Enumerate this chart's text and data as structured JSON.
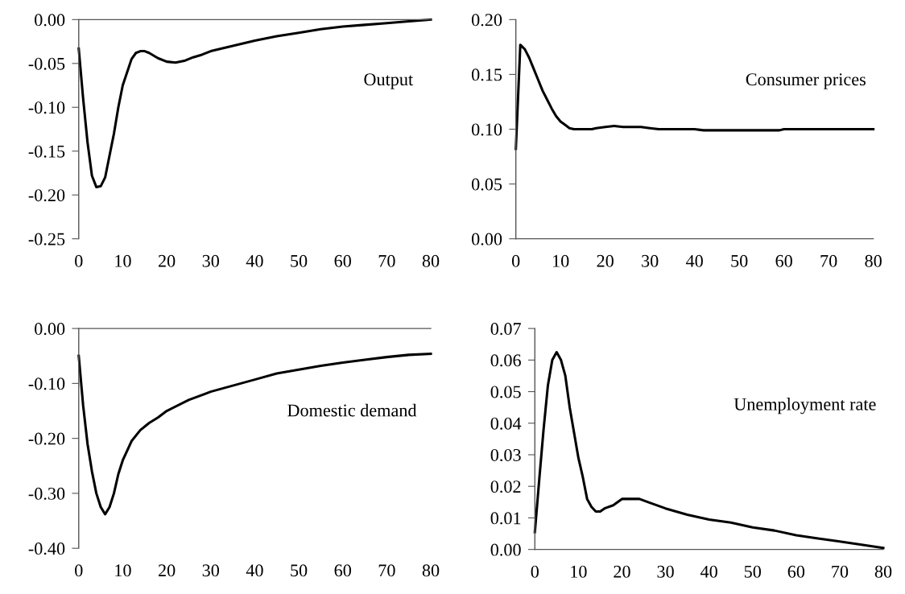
{
  "chart_data": [
    {
      "type": "line",
      "x": [
        0,
        1,
        2,
        3,
        4,
        5,
        6,
        7,
        8,
        9,
        10,
        12,
        13,
        14,
        15,
        16,
        18,
        20,
        22,
        24,
        26,
        28,
        30,
        35,
        40,
        45,
        50,
        55,
        60,
        65,
        70,
        75,
        80
      ],
      "series": [
        {
          "color": "#000000",
          "values": [
            -0.033,
            -0.09,
            -0.14,
            -0.178,
            -0.191,
            -0.19,
            -0.18,
            -0.155,
            -0.13,
            -0.1,
            -0.075,
            -0.045,
            -0.038,
            -0.036,
            -0.036,
            -0.038,
            -0.044,
            -0.048,
            -0.049,
            -0.047,
            -0.043,
            -0.04,
            -0.036,
            -0.03,
            -0.024,
            -0.019,
            -0.015,
            -0.011,
            -0.008,
            -0.006,
            -0.004,
            -0.002,
            0
          ]
        }
      ],
      "xlim": [
        0,
        80
      ],
      "xticks": [
        0,
        10,
        20,
        30,
        40,
        50,
        60,
        70,
        80
      ],
      "ylim": [
        -0.25,
        0
      ],
      "yticks": [
        {
          "value": -0.25,
          "label": "-0.25"
        },
        {
          "value": -0.2,
          "label": "-0.20"
        },
        {
          "value": -0.15,
          "label": "-0.15"
        },
        {
          "value": -0.1,
          "label": "-0.10"
        },
        {
          "value": -0.05,
          "label": "-0.05"
        },
        {
          "value": 0,
          "label": "0.00"
        }
      ],
      "annotations": [
        "Output"
      ]
    },
    {
      "type": "line",
      "x": [
        0,
        1,
        2,
        3,
        4,
        5,
        6,
        7,
        8,
        9,
        10,
        11,
        12,
        13,
        15,
        17,
        18,
        20,
        22,
        24,
        28,
        30,
        32,
        40,
        42,
        59,
        60,
        80
      ],
      "series": [
        {
          "color": "#000000",
          "values": [
            0.082,
            0.177,
            0.173,
            0.165,
            0.155,
            0.145,
            0.135,
            0.127,
            0.119,
            0.112,
            0.107,
            0.104,
            0.101,
            0.1,
            0.1,
            0.1,
            0.101,
            0.102,
            0.103,
            0.102,
            0.102,
            0.101,
            0.1,
            0.1,
            0.099,
            0.099,
            0.1,
            0.1
          ]
        }
      ],
      "xlim": [
        0,
        80
      ],
      "xticks": [
        0,
        10,
        20,
        30,
        40,
        50,
        60,
        70,
        80
      ],
      "ylim": [
        0,
        0.2
      ],
      "yticks": [
        {
          "value": 0,
          "label": "0.00"
        },
        {
          "value": 0.05,
          "label": "0.05"
        },
        {
          "value": 0.1,
          "label": "0.10"
        },
        {
          "value": 0.15,
          "label": "0.15"
        },
        {
          "value": 0.2,
          "label": "0.20"
        }
      ],
      "annotations": [
        "Consumer prices"
      ]
    },
    {
      "type": "line",
      "x": [
        0,
        1,
        2,
        3,
        4,
        5,
        6,
        7,
        8,
        9,
        10,
        12,
        14,
        16,
        18,
        20,
        25,
        30,
        35,
        40,
        45,
        50,
        55,
        60,
        65,
        70,
        75,
        80
      ],
      "series": [
        {
          "color": "#000000",
          "values": [
            -0.05,
            -0.14,
            -0.21,
            -0.26,
            -0.3,
            -0.325,
            -0.338,
            -0.325,
            -0.3,
            -0.265,
            -0.24,
            -0.205,
            -0.185,
            -0.172,
            -0.162,
            -0.15,
            -0.13,
            -0.115,
            -0.104,
            -0.093,
            -0.082,
            -0.075,
            -0.068,
            -0.062,
            -0.057,
            -0.052,
            -0.048,
            -0.046
          ]
        }
      ],
      "xlim": [
        0,
        80
      ],
      "xticks": [
        0,
        10,
        20,
        30,
        40,
        50,
        60,
        70,
        80
      ],
      "ylim": [
        -0.4,
        0
      ],
      "yticks": [
        {
          "value": -0.4,
          "label": "-0.40"
        },
        {
          "value": -0.3,
          "label": "-0.30"
        },
        {
          "value": -0.2,
          "label": "-0.20"
        },
        {
          "value": -0.1,
          "label": "-0.10"
        },
        {
          "value": 0,
          "label": "0.00"
        }
      ],
      "annotations": [
        "Domestic demand"
      ]
    },
    {
      "type": "line",
      "x": [
        0,
        1,
        2,
        3,
        4,
        5,
        6,
        7,
        8,
        9,
        10,
        11,
        12,
        13,
        14,
        15,
        16,
        18,
        20,
        24,
        26,
        30,
        35,
        40,
        45,
        50,
        55,
        60,
        65,
        70,
        75,
        80
      ],
      "series": [
        {
          "color": "#000000",
          "values": [
            0.0055,
            0.022,
            0.038,
            0.052,
            0.06,
            0.0625,
            0.06,
            0.055,
            0.045,
            0.037,
            0.029,
            0.023,
            0.016,
            0.0135,
            0.012,
            0.012,
            0.013,
            0.014,
            0.016,
            0.016,
            0.015,
            0.013,
            0.011,
            0.0095,
            0.0085,
            0.007,
            0.006,
            0.0045,
            0.0035,
            0.0025,
            0.0015,
            0.0005
          ]
        }
      ],
      "xlim": [
        0,
        80
      ],
      "xticks": [
        0,
        10,
        20,
        30,
        40,
        50,
        60,
        70,
        80
      ],
      "ylim": [
        0,
        0.07
      ],
      "yticks": [
        {
          "value": 0,
          "label": "0.00"
        },
        {
          "value": 0.01,
          "label": "0.01"
        },
        {
          "value": 0.02,
          "label": "0.02"
        },
        {
          "value": 0.03,
          "label": "0.03"
        },
        {
          "value": 0.04,
          "label": "0.04"
        },
        {
          "value": 0.05,
          "label": "0.05"
        },
        {
          "value": 0.06,
          "label": "0.06"
        },
        {
          "value": 0.07,
          "label": "0.07"
        }
      ],
      "annotations": [
        "Unemployment rate"
      ]
    }
  ]
}
